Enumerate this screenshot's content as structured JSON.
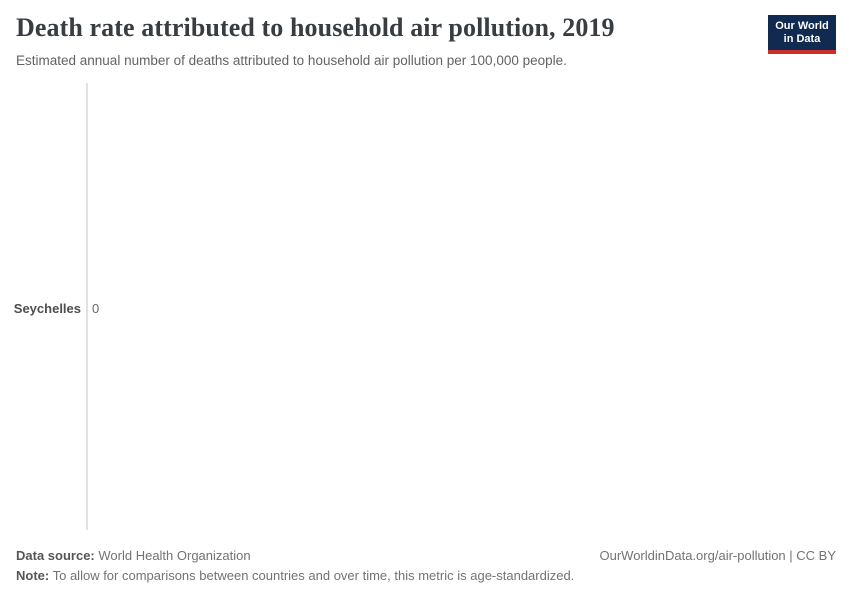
{
  "header": {
    "title": "Death rate attributed to household air pollution, 2019",
    "subtitle": "Estimated annual number of deaths attributed to household air pollution per 100,000 people."
  },
  "logo": {
    "line1": "Our World",
    "line2": "in Data",
    "bg_color": "#102a50",
    "accent_color": "#cd302b"
  },
  "chart_data": {
    "type": "bar",
    "orientation": "horizontal",
    "categories": [
      "Seychelles"
    ],
    "values": [
      0
    ],
    "value_labels": [
      "0"
    ],
    "title": "Death rate attributed to household air pollution, 2019",
    "subtitle": "Estimated annual number of deaths attributed to household air pollution per 100,000 people.",
    "xlabel": "",
    "ylabel": "",
    "grid": false,
    "legend": "none",
    "axis_line_color": "#e2e2e2"
  },
  "footer": {
    "datasource_label": "Data source:",
    "datasource_value": "World Health Organization",
    "note_label": "Note:",
    "note_value": "To allow for comparisons between countries and over time, this metric is age-standardized.",
    "link": "OurWorldinData.org/air-pollution | CC BY"
  }
}
